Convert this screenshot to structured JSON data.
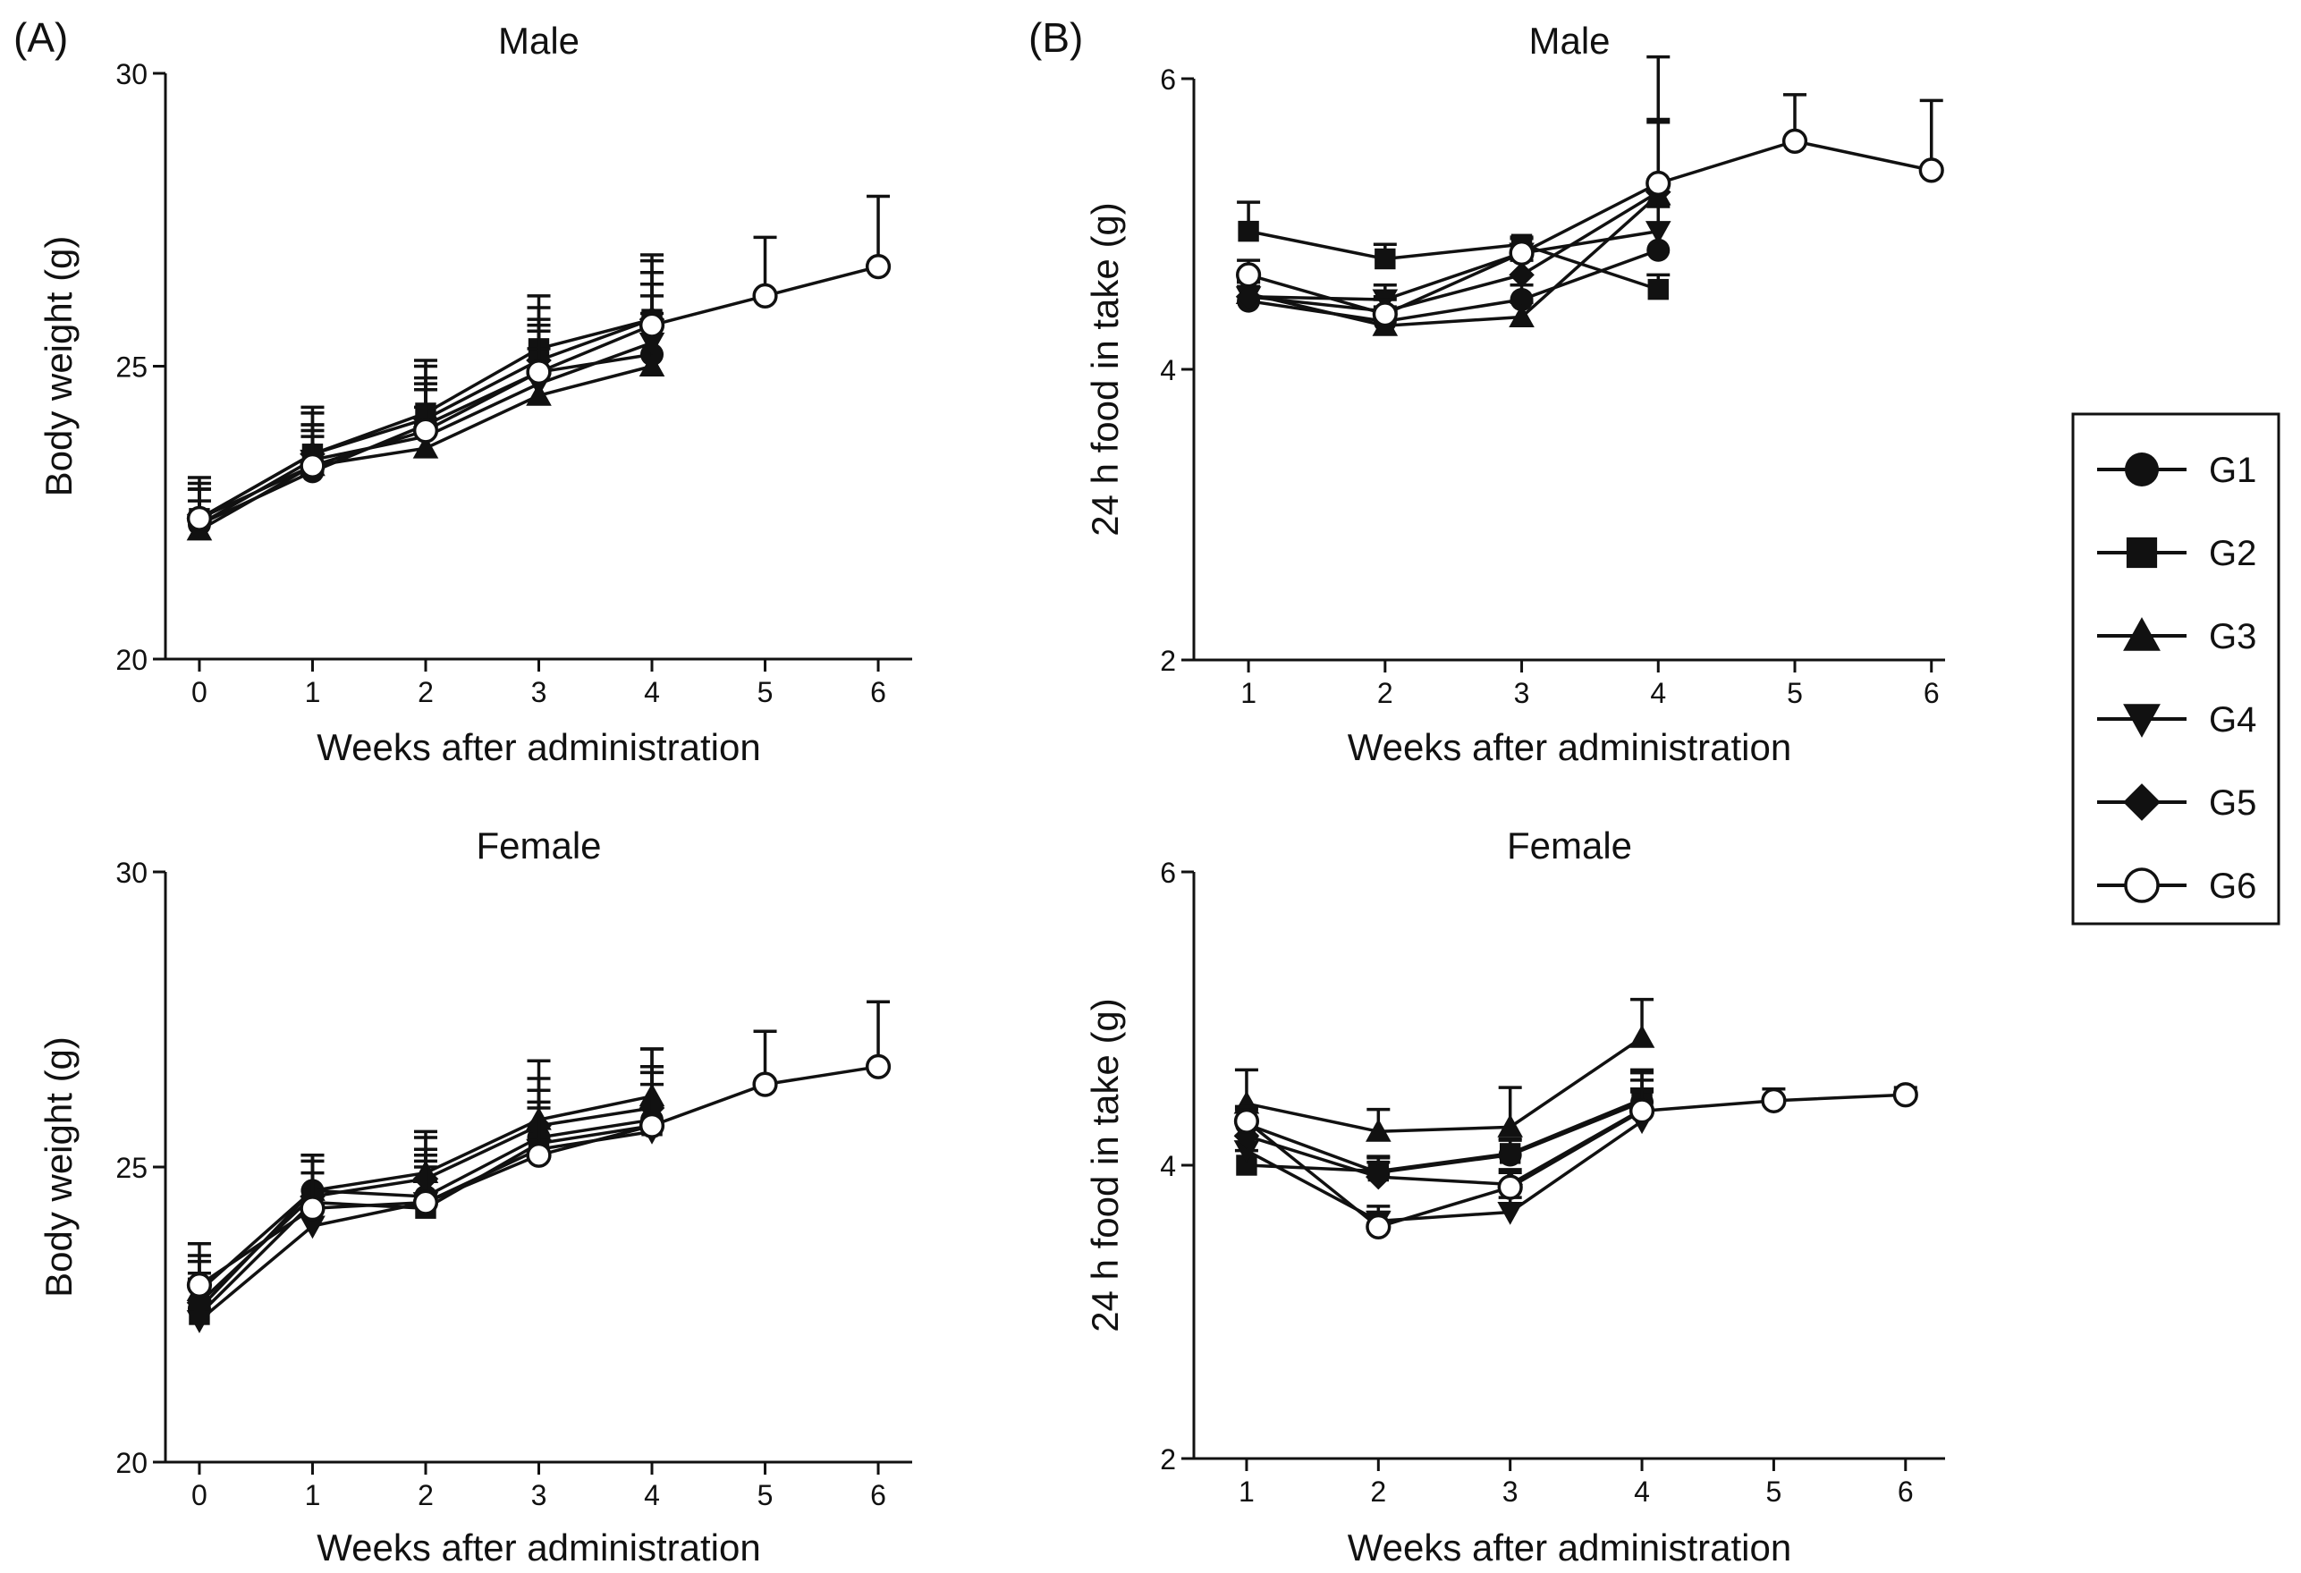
{
  "panel_labels": {
    "a": "(A)",
    "b": "(B)"
  },
  "legend": {
    "items": [
      {
        "name": "G1",
        "marker": "circle"
      },
      {
        "name": "G2",
        "marker": "square"
      },
      {
        "name": "G3",
        "marker": "triangle-up"
      },
      {
        "name": "G4",
        "marker": "triangle-down"
      },
      {
        "name": "G5",
        "marker": "diamond"
      },
      {
        "name": "G6",
        "marker": "open-circle"
      }
    ]
  },
  "colors": {
    "ink": "#111111",
    "background": "#ffffff"
  },
  "chart_data": [
    {
      "id": "a-male",
      "panel": "(A)",
      "type": "line",
      "title": "Male",
      "xlabel": "Weeks after administration",
      "ylabel": "Body weight (g)",
      "xlim": [
        -0.3,
        6.3
      ],
      "ylim": [
        20,
        30
      ],
      "xticks": [
        0,
        1,
        2,
        3,
        4,
        5,
        6
      ],
      "yticks": [
        20,
        25,
        30
      ],
      "series": [
        {
          "name": "G1",
          "x": [
            0,
            1,
            2,
            3,
            4
          ],
          "values": [
            22.3,
            23.2,
            24.0,
            24.9,
            25.2
          ],
          "err": [
            0.6,
            0.6,
            0.8,
            0.9,
            1.0
          ]
        },
        {
          "name": "G2",
          "x": [
            0,
            1,
            2,
            3,
            4
          ],
          "values": [
            22.4,
            23.5,
            24.2,
            25.3,
            25.8
          ],
          "err": [
            0.7,
            0.8,
            0.9,
            0.9,
            1.0
          ]
        },
        {
          "name": "G3",
          "x": [
            0,
            1,
            2,
            3,
            4
          ],
          "values": [
            22.2,
            23.3,
            23.6,
            24.5,
            25.0
          ],
          "err": [
            0.5,
            0.6,
            0.7,
            0.8,
            0.9
          ]
        },
        {
          "name": "G4",
          "x": [
            0,
            1,
            2,
            3,
            4
          ],
          "values": [
            22.3,
            23.4,
            23.8,
            24.7,
            25.4
          ],
          "err": [
            0.6,
            0.6,
            0.8,
            0.9,
            1.0
          ]
        },
        {
          "name": "G5",
          "x": [
            0,
            1,
            2,
            3,
            4
          ],
          "values": [
            22.4,
            23.5,
            24.1,
            25.1,
            25.8
          ],
          "err": [
            0.6,
            0.7,
            0.9,
            0.9,
            1.1
          ]
        },
        {
          "name": "G6",
          "x": [
            0,
            1,
            2,
            3,
            4,
            5,
            6
          ],
          "values": [
            22.4,
            23.3,
            23.9,
            24.9,
            25.7,
            26.2,
            26.7
          ],
          "err": [
            0.5,
            0.7,
            0.8,
            0.8,
            0.9,
            1.0,
            1.2
          ]
        }
      ]
    },
    {
      "id": "a-female",
      "panel": "(A)",
      "type": "line",
      "title": "Female",
      "xlabel": "Weeks after administration",
      "ylabel": "Body weight (g)",
      "xlim": [
        -0.3,
        6.3
      ],
      "ylim": [
        20,
        30
      ],
      "xticks": [
        0,
        1,
        2,
        3,
        4,
        5,
        6
      ],
      "yticks": [
        20,
        25,
        30
      ],
      "series": [
        {
          "name": "G1",
          "x": [
            0,
            1,
            2,
            3,
            4
          ],
          "values": [
            22.6,
            24.6,
            24.5,
            25.5,
            25.8
          ],
          "err": [
            0.6,
            0.6,
            0.8,
            0.8,
            0.9
          ]
        },
        {
          "name": "G2",
          "x": [
            0,
            1,
            2,
            3,
            4
          ],
          "values": [
            22.5,
            24.4,
            24.3,
            25.4,
            25.7
          ],
          "err": [
            0.6,
            0.7,
            0.7,
            0.9,
            1.0
          ]
        },
        {
          "name": "G3",
          "x": [
            0,
            1,
            2,
            3,
            4
          ],
          "values": [
            22.9,
            24.6,
            24.9,
            25.8,
            26.2
          ],
          "err": [
            0.6,
            0.6,
            0.7,
            1.0,
            0.8
          ]
        },
        {
          "name": "G4",
          "x": [
            0,
            1,
            2,
            3,
            4
          ],
          "values": [
            22.4,
            24.0,
            24.4,
            25.3,
            25.6
          ],
          "err": [
            0.7,
            0.6,
            0.7,
            0.8,
            0.8
          ]
        },
        {
          "name": "G5",
          "x": [
            0,
            1,
            2,
            3,
            4
          ],
          "values": [
            22.7,
            24.5,
            24.8,
            25.7,
            26.0
          ],
          "err": [
            0.7,
            0.7,
            0.7,
            0.8,
            1.0
          ]
        },
        {
          "name": "G6",
          "x": [
            0,
            1,
            2,
            3,
            4,
            5,
            6
          ],
          "values": [
            23.0,
            24.3,
            24.4,
            25.2,
            25.7,
            26.4,
            26.7
          ],
          "err": [
            0.7,
            0.6,
            0.8,
            0.8,
            0.9,
            0.9,
            1.1
          ]
        }
      ]
    },
    {
      "id": "b-male",
      "panel": "(B)",
      "type": "line",
      "title": "Male",
      "xlabel": "Weeks after administration",
      "ylabel": "24 h food in take (g)",
      "xlim": [
        0.6,
        6.1
      ],
      "ylim": [
        2,
        6
      ],
      "xticks": [
        1,
        2,
        3,
        4,
        5,
        6
      ],
      "yticks": [
        2,
        4,
        6
      ],
      "series": [
        {
          "name": "G1",
          "x": [
            1,
            2,
            3,
            4
          ],
          "values": [
            4.47,
            4.33,
            4.48,
            4.82
          ],
          "err": [
            0.1,
            0.1,
            0.1,
            0.3
          ]
        },
        {
          "name": "G2",
          "x": [
            1,
            2,
            3,
            4
          ],
          "values": [
            4.95,
            4.76,
            4.86,
            4.55
          ],
          "err": [
            0.2,
            0.1,
            0.05,
            0.1
          ]
        },
        {
          "name": "G3",
          "x": [
            1,
            2,
            3,
            4
          ],
          "values": [
            4.52,
            4.3,
            4.36,
            5.2
          ],
          "err": [
            0.1,
            0.1,
            0.1,
            0.5
          ]
        },
        {
          "name": "G4",
          "x": [
            1,
            2,
            3,
            4
          ],
          "values": [
            4.5,
            4.48,
            4.8,
            4.95
          ],
          "err": [
            0.1,
            0.1,
            0.1,
            0.3
          ]
        },
        {
          "name": "G5",
          "x": [
            1,
            2,
            3,
            4
          ],
          "values": [
            4.5,
            4.4,
            4.65,
            5.22
          ],
          "err": [
            0.1,
            0.1,
            0.1,
            0.5
          ]
        },
        {
          "name": "G6",
          "x": [
            1,
            2,
            3,
            4,
            5,
            6
          ],
          "values": [
            4.65,
            4.38,
            4.8,
            5.28,
            5.57,
            5.37
          ],
          "err": [
            0.1,
            0.1,
            0.1,
            0.87,
            0.32,
            0.48
          ]
        }
      ]
    },
    {
      "id": "b-female",
      "panel": "(B)",
      "type": "line",
      "title": "Female",
      "xlabel": "Weeks after administration",
      "ylabel": "24 h food in take (g)",
      "xlim": [
        0.6,
        6.3
      ],
      "ylim": [
        2,
        6
      ],
      "xticks": [
        1,
        2,
        3,
        4,
        5,
        6
      ],
      "yticks": [
        2,
        4,
        6
      ],
      "series": [
        {
          "name": "G1",
          "x": [
            1,
            2,
            3,
            4
          ],
          "values": [
            4.28,
            3.95,
            4.07,
            4.43
          ],
          "err": [
            0.1,
            0.1,
            0.1,
            0.2
          ]
        },
        {
          "name": "G2",
          "x": [
            1,
            2,
            3,
            4
          ],
          "values": [
            4.0,
            3.96,
            4.08,
            4.45
          ],
          "err": [
            0.1,
            0.1,
            0.1,
            0.2
          ]
        },
        {
          "name": "G3",
          "x": [
            1,
            2,
            3,
            4
          ],
          "values": [
            4.42,
            4.23,
            4.26,
            4.87
          ],
          "err": [
            0.23,
            0.15,
            0.27,
            0.26
          ]
        },
        {
          "name": "G4",
          "x": [
            1,
            2,
            3,
            4
          ],
          "values": [
            4.1,
            3.62,
            3.68,
            4.3
          ],
          "err": [
            0.1,
            0.1,
            0.1,
            0.2
          ]
        },
        {
          "name": "G5",
          "x": [
            1,
            2,
            3,
            4
          ],
          "values": [
            4.2,
            3.92,
            3.87,
            4.38
          ],
          "err": [
            0.1,
            0.1,
            0.1,
            0.2
          ]
        },
        {
          "name": "G6",
          "x": [
            1,
            2,
            3,
            4,
            5,
            6
          ],
          "values": [
            4.3,
            3.58,
            3.85,
            4.37,
            4.44,
            4.48
          ],
          "err": [
            0.1,
            0.1,
            0.1,
            0.15,
            0.08,
            0.05
          ]
        }
      ]
    }
  ]
}
